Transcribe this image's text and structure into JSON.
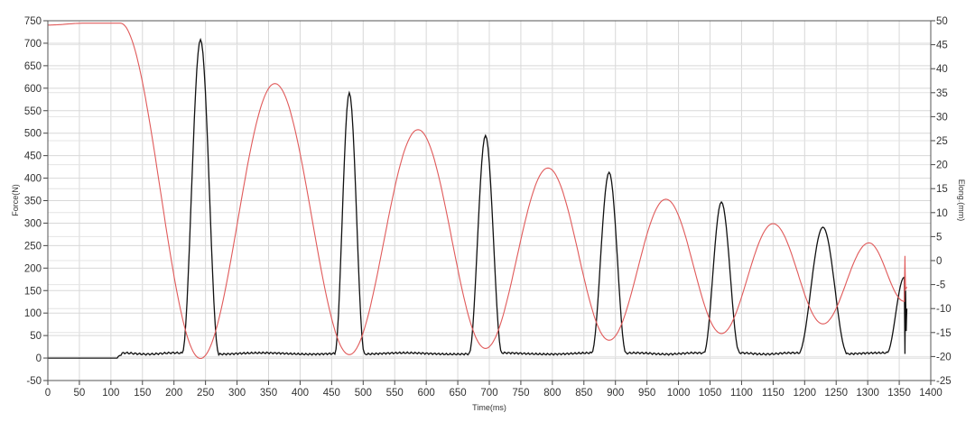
{
  "chart_data": {
    "type": "line",
    "title": "",
    "xlabel": "Time(ms)",
    "ylabel": "Force(N)",
    "y2label": "Elong.(mm)",
    "xlim": [
      0,
      1400
    ],
    "ylim": [
      -50,
      750
    ],
    "y2lim": [
      -25,
      50
    ],
    "xticks": [
      0,
      50,
      100,
      150,
      200,
      250,
      300,
      350,
      400,
      450,
      500,
      550,
      600,
      650,
      700,
      750,
      800,
      850,
      900,
      950,
      1000,
      1050,
      1100,
      1150,
      1200,
      1250,
      1300,
      1350,
      1400
    ],
    "yticks": [
      -50,
      0,
      50,
      100,
      150,
      200,
      250,
      300,
      350,
      400,
      450,
      500,
      550,
      600,
      650,
      700,
      750
    ],
    "y2ticks": [
      -25,
      -20,
      -15,
      -10,
      -5,
      0,
      5,
      10,
      15,
      20,
      25,
      30,
      35,
      40,
      45,
      50
    ],
    "grid": true,
    "legend": "none",
    "series": [
      {
        "axis": "left",
        "color": "#111111",
        "points": [
          [
            0,
            0
          ],
          [
            110,
            0
          ],
          [
            120,
            10
          ],
          [
            213,
            10
          ],
          [
            242,
            708
          ],
          [
            271,
            10
          ],
          [
            455,
            10
          ],
          [
            478,
            590
          ],
          [
            502,
            10
          ],
          [
            668,
            10
          ],
          [
            694,
            495
          ],
          [
            720,
            10
          ],
          [
            862,
            10
          ],
          [
            890,
            413
          ],
          [
            917,
            10
          ],
          [
            1040,
            10
          ],
          [
            1068,
            347
          ],
          [
            1097,
            10
          ],
          [
            1190,
            10
          ],
          [
            1229,
            291
          ],
          [
            1268,
            10
          ],
          [
            1330,
            10
          ],
          [
            1358,
            180
          ],
          [
            1359,
            10
          ],
          [
            1360,
            150
          ],
          [
            1361,
            60
          ],
          [
            1362,
            110
          ]
        ]
      },
      {
        "axis": "right",
        "color": "#e05a5a",
        "points": [
          [
            0,
            49.1
          ],
          [
            60,
            49.5
          ],
          [
            115,
            49.5
          ],
          [
            242,
            -20.4
          ],
          [
            360,
            36.9
          ],
          [
            478,
            -19.6
          ],
          [
            587,
            27.3
          ],
          [
            694,
            -18.3
          ],
          [
            793,
            19.3
          ],
          [
            890,
            -16.6
          ],
          [
            980,
            12.8
          ],
          [
            1068,
            -15.2
          ],
          [
            1150,
            7.7
          ],
          [
            1229,
            -13.2
          ],
          [
            1302,
            3.7
          ],
          [
            1358,
            -8.5
          ],
          [
            1359,
            1
          ],
          [
            1360,
            -6
          ],
          [
            1362,
            -5.5
          ]
        ]
      }
    ]
  }
}
